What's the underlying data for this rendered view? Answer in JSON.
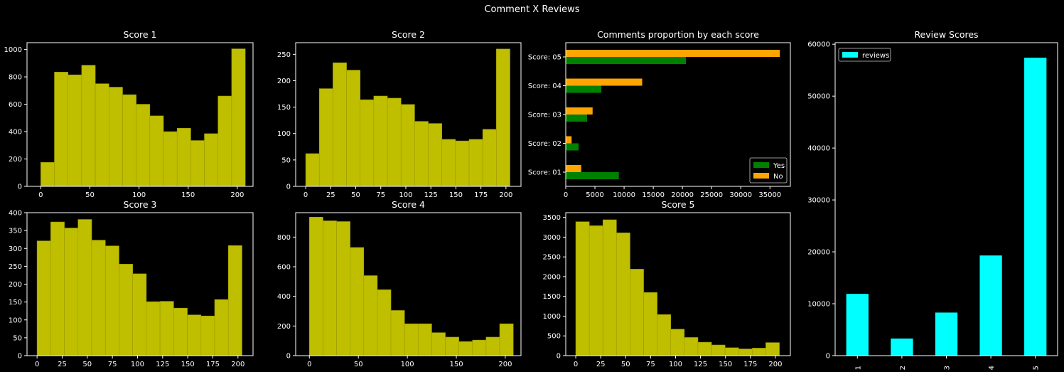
{
  "suptitle": "Comment X Reviews",
  "colors": {
    "background": "#000000",
    "axes_edge": "#ffffff",
    "text": "#ffffff",
    "hist_fill": "#bfbf00",
    "hist_edge": "#9a9a00",
    "yes": "#008000",
    "no": "#ffa500",
    "reviews": "#00ffff"
  },
  "chart_data": [
    {
      "id": "score1",
      "type": "bar",
      "title": "Score 1",
      "xlim": [
        -14,
        216
      ],
      "ylim": [
        0,
        1050
      ],
      "xticks": [
        0,
        50,
        100,
        150,
        200
      ],
      "yticks": [
        0,
        200,
        400,
        600,
        800,
        1000
      ],
      "bin_width": 13.875,
      "bins": [
        0,
        13.875,
        27.75,
        41.625,
        55.5,
        69.375,
        83.25,
        97.125,
        111,
        124.875,
        138.75,
        152.625,
        166.5,
        180.375,
        194.25
      ],
      "values": [
        175,
        835,
        815,
        885,
        750,
        725,
        670,
        600,
        515,
        400,
        425,
        335,
        385,
        660,
        1005
      ]
    },
    {
      "id": "score2",
      "type": "bar",
      "title": "Score 2",
      "xlim": [
        -10,
        215
      ],
      "ylim": [
        0,
        272
      ],
      "xticks": [
        0,
        25,
        50,
        75,
        100,
        125,
        150,
        175,
        200
      ],
      "yticks": [
        0,
        50,
        100,
        150,
        200,
        250
      ],
      "bin_width": 13.6,
      "bins": [
        0,
        13.6,
        27.2,
        40.8,
        54.4,
        68,
        81.6,
        95.2,
        108.8,
        122.4,
        136,
        149.6,
        163.2,
        176.8,
        190.4
      ],
      "values": [
        62,
        185,
        234,
        220,
        164,
        171,
        167,
        155,
        123,
        119,
        89,
        86,
        89,
        108,
        260
      ]
    },
    {
      "id": "score3",
      "type": "bar",
      "title": "Score 3",
      "xlim": [
        -10,
        215
      ],
      "ylim": [
        0,
        400
      ],
      "xticks": [
        0,
        25,
        50,
        75,
        100,
        125,
        150,
        175,
        200
      ],
      "yticks": [
        0,
        50,
        100,
        150,
        200,
        250,
        300,
        350,
        400
      ],
      "bin_width": 13.6,
      "bins": [
        0,
        13.6,
        27.2,
        40.8,
        54.4,
        68,
        81.6,
        95.2,
        108.8,
        122.4,
        136,
        149.6,
        163.2,
        176.8,
        190.4
      ],
      "values": [
        321,
        374,
        357,
        381,
        323,
        307,
        256,
        229,
        151,
        152,
        133,
        114,
        111,
        157,
        308
      ]
    },
    {
      "id": "score4",
      "type": "bar",
      "title": "Score 4",
      "xlim": [
        -14,
        216
      ],
      "ylim": [
        0,
        965
      ],
      "xticks": [
        0,
        50,
        100,
        150,
        200
      ],
      "yticks": [
        0,
        200,
        400,
        600,
        800
      ],
      "bin_width": 13.875,
      "bins": [
        0,
        13.875,
        27.75,
        41.625,
        55.5,
        69.375,
        83.25,
        97.125,
        111,
        124.875,
        138.75,
        152.625,
        166.5,
        180.375,
        194.25
      ],
      "values": [
        935,
        910,
        905,
        730,
        540,
        445,
        305,
        215,
        215,
        155,
        125,
        95,
        105,
        125,
        215
      ]
    },
    {
      "id": "score5",
      "type": "bar",
      "title": "Score 5",
      "xlim": [
        -10,
        215
      ],
      "ylim": [
        0,
        3620
      ],
      "xticks": [
        0,
        25,
        50,
        75,
        100,
        125,
        150,
        175,
        200
      ],
      "yticks": [
        0,
        500,
        1000,
        1500,
        2000,
        2500,
        3000,
        3500
      ],
      "bin_width": 13.6,
      "bins": [
        0,
        13.6,
        27.2,
        40.8,
        54.4,
        68,
        81.6,
        95.2,
        108.8,
        122.4,
        136,
        149.6,
        163.2,
        176.8,
        190.4
      ],
      "values": [
        3390,
        3290,
        3440,
        3110,
        2190,
        1600,
        1040,
        670,
        460,
        340,
        270,
        200,
        170,
        190,
        330
      ]
    },
    {
      "id": "proportion",
      "type": "bar",
      "orientation": "horizontal",
      "title": "Comments proportion by each score",
      "categories": [
        "Score: 01",
        "Score: 02",
        "Score: 03",
        "Score: 04",
        "Score: 05"
      ],
      "series": [
        {
          "name": "Yes",
          "values": [
            9100,
            2200,
            3650,
            6100,
            20600
          ]
        },
        {
          "name": "No",
          "values": [
            2650,
            1000,
            4600,
            13100,
            36700
          ]
        }
      ],
      "xlim": [
        0,
        38500
      ],
      "xticks": [
        0,
        5000,
        10000,
        15000,
        20000,
        25000,
        30000,
        35000
      ],
      "legend": "lower-right"
    },
    {
      "id": "reviews",
      "type": "bar",
      "title": "Review Scores",
      "categories": [
        "1",
        "2",
        "3",
        "4",
        "5"
      ],
      "series": [
        {
          "name": "reviews",
          "values": [
            11900,
            3300,
            8300,
            19300,
            57400
          ]
        }
      ],
      "ylim": [
        0,
        60300
      ],
      "yticks": [
        0,
        10000,
        20000,
        30000,
        40000,
        50000,
        60000
      ],
      "legend": "top-left"
    }
  ]
}
